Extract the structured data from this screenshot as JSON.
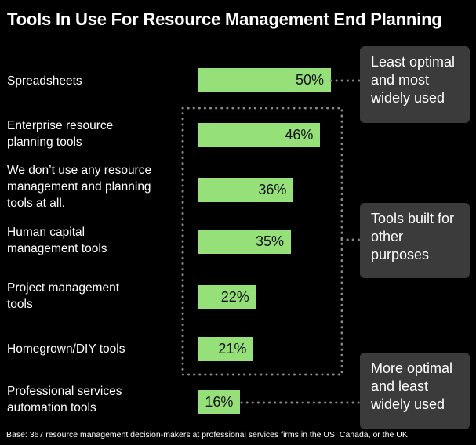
{
  "chart_data": {
    "type": "bar",
    "orientation": "horizontal",
    "title": "Tools In Use For Resource Management End Planning",
    "categories": [
      "Spreadsheets",
      "Enterprise resource planning tools",
      "We don’t use any resource management and planning tools at all.",
      "Human capital management tools",
      "Project management tools",
      "Homegrown/DIY tools",
      "Professional services automation tools"
    ],
    "values": [
      50,
      46,
      36,
      35,
      22,
      21,
      16
    ],
    "value_labels": [
      "50%",
      "46%",
      "36%",
      "35%",
      "22%",
      "21%",
      "16%"
    ],
    "unit": "%",
    "bar_color": "#96e07a",
    "xlim": [
      0,
      50
    ],
    "grid": false,
    "annotations": [
      {
        "text": "Least optimal and most widely used",
        "applies_to": [
          "Spreadsheets"
        ]
      },
      {
        "text": "Tools built for other purposes",
        "applies_to": [
          "Enterprise resource planning tools",
          "We don’t use any resource management and planning tools at all.",
          "Human capital management tools",
          "Project management tools",
          "Homegrown/DIY tools"
        ]
      },
      {
        "text": "More optimal and least widely used",
        "applies_to": [
          "Professional services automation tools"
        ]
      }
    ],
    "footnote": "Base: 367 resource management decision-makers at professional services firms in the US, Canada, or the UK"
  }
}
